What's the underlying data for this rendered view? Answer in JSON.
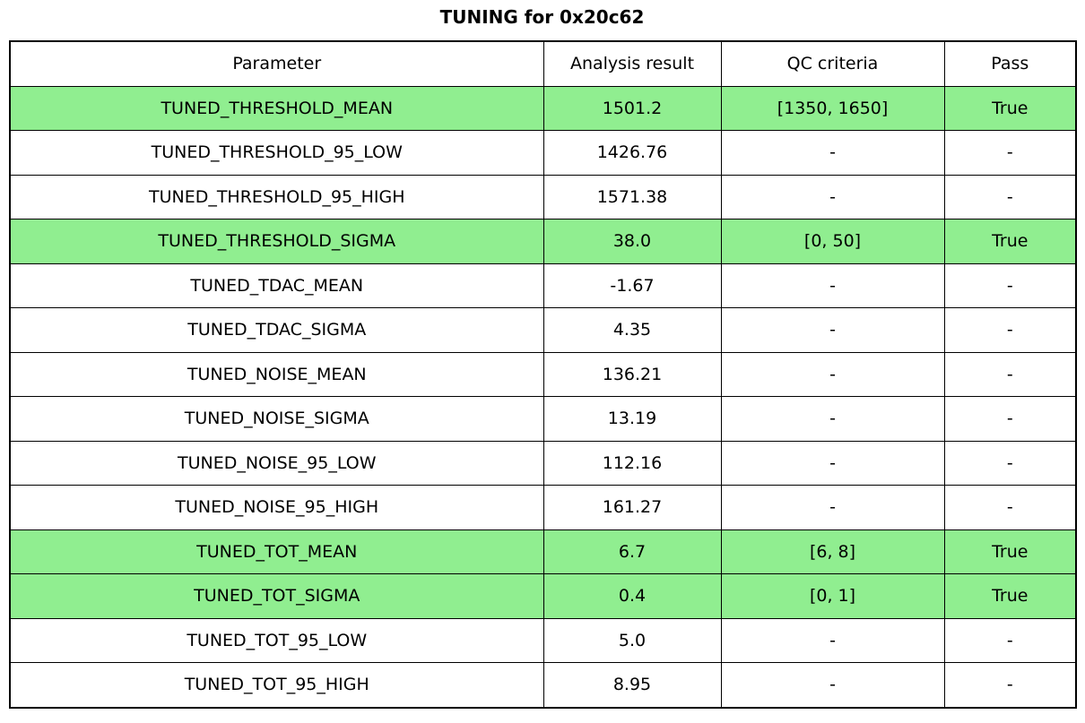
{
  "title": "TUNING for 0x20c62",
  "colors": {
    "highlight": "#90EE90",
    "border": "#000000",
    "background": "#ffffff",
    "text": "#000000"
  },
  "chart_data": {
    "type": "table",
    "title": "TUNING for 0x20c62",
    "columns": [
      "Parameter",
      "Analysis result",
      "QC criteria",
      "Pass"
    ],
    "rows": [
      {
        "parameter": "TUNED_THRESHOLD_MEAN",
        "analysis_result": "1501.2",
        "qc_criteria": "[1350, 1650]",
        "pass": "True",
        "highlighted": true
      },
      {
        "parameter": "TUNED_THRESHOLD_95_LOW",
        "analysis_result": "1426.76",
        "qc_criteria": "-",
        "pass": "-",
        "highlighted": false
      },
      {
        "parameter": "TUNED_THRESHOLD_95_HIGH",
        "analysis_result": "1571.38",
        "qc_criteria": "-",
        "pass": "-",
        "highlighted": false
      },
      {
        "parameter": "TUNED_THRESHOLD_SIGMA",
        "analysis_result": "38.0",
        "qc_criteria": "[0, 50]",
        "pass": "True",
        "highlighted": true
      },
      {
        "parameter": "TUNED_TDAC_MEAN",
        "analysis_result": "-1.67",
        "qc_criteria": "-",
        "pass": "-",
        "highlighted": false
      },
      {
        "parameter": "TUNED_TDAC_SIGMA",
        "analysis_result": "4.35",
        "qc_criteria": "-",
        "pass": "-",
        "highlighted": false
      },
      {
        "parameter": "TUNED_NOISE_MEAN",
        "analysis_result": "136.21",
        "qc_criteria": "-",
        "pass": "-",
        "highlighted": false
      },
      {
        "parameter": "TUNED_NOISE_SIGMA",
        "analysis_result": "13.19",
        "qc_criteria": "-",
        "pass": "-",
        "highlighted": false
      },
      {
        "parameter": "TUNED_NOISE_95_LOW",
        "analysis_result": "112.16",
        "qc_criteria": "-",
        "pass": "-",
        "highlighted": false
      },
      {
        "parameter": "TUNED_NOISE_95_HIGH",
        "analysis_result": "161.27",
        "qc_criteria": "-",
        "pass": "-",
        "highlighted": false
      },
      {
        "parameter": "TUNED_TOT_MEAN",
        "analysis_result": "6.7",
        "qc_criteria": "[6, 8]",
        "pass": "True",
        "highlighted": true
      },
      {
        "parameter": "TUNED_TOT_SIGMA",
        "analysis_result": "0.4",
        "qc_criteria": "[0, 1]",
        "pass": "True",
        "highlighted": true
      },
      {
        "parameter": "TUNED_TOT_95_LOW",
        "analysis_result": "5.0",
        "qc_criteria": "-",
        "pass": "-",
        "highlighted": false
      },
      {
        "parameter": "TUNED_TOT_95_HIGH",
        "analysis_result": "8.95",
        "qc_criteria": "-",
        "pass": "-",
        "highlighted": false
      }
    ]
  }
}
